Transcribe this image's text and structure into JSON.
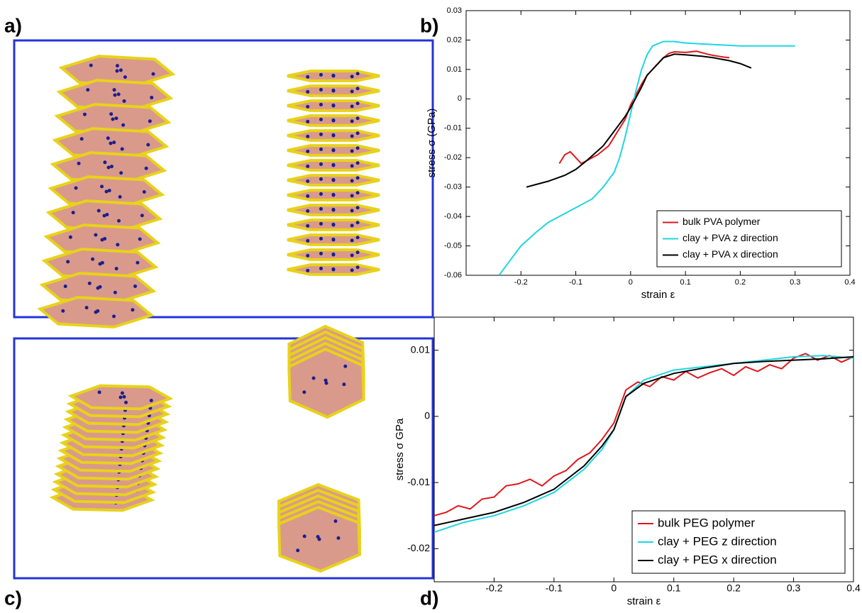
{
  "panel_labels": [
    "a)",
    "b)",
    "c)",
    "d)"
  ],
  "chart_data": [
    {
      "type": "line",
      "xlabel": "strain ε",
      "ylabel": "stress σ  (GPa)",
      "xlim": [
        -0.3,
        0.4
      ],
      "xticks": [
        -0.2,
        -0.1,
        0,
        0.1,
        0.2,
        0.3,
        0.4
      ],
      "ylim": [
        -0.06,
        0.03
      ],
      "yticks": [
        -0.06,
        -0.05,
        -0.04,
        -0.03,
        -0.02,
        -0.01,
        0,
        0.01,
        0.02,
        0.03
      ],
      "legend": "lower right",
      "series": [
        {
          "name": "bulk PVA polymer",
          "color": "#e0161c",
          "x": [
            -0.13,
            -0.12,
            -0.11,
            -0.1,
            -0.09,
            -0.07,
            -0.06,
            -0.04,
            -0.03,
            -0.01,
            0,
            0.02,
            0.03,
            0.05,
            0.06,
            0.07,
            0.08,
            0.1,
            0.12,
            0.14,
            0.15,
            0.17,
            0.18
          ],
          "values": [
            -0.022,
            -0.019,
            -0.018,
            -0.02,
            -0.022,
            -0.02,
            -0.019,
            -0.016,
            -0.013,
            -0.007,
            -0.002,
            0.005,
            0.008,
            0.012,
            0.014,
            0.0155,
            0.016,
            0.0158,
            0.0162,
            0.0152,
            0.0148,
            0.0142,
            0.014
          ]
        },
        {
          "name": "clay + PVA z direction",
          "color": "#1fd6e0",
          "x": [
            -0.24,
            -0.22,
            -0.2,
            -0.17,
            -0.15,
            -0.12,
            -0.1,
            -0.07,
            -0.05,
            -0.03,
            -0.02,
            -0.01,
            0,
            0.01,
            0.02,
            0.03,
            0.04,
            0.06,
            0.08,
            0.1,
            0.15,
            0.2,
            0.25,
            0.3
          ],
          "values": [
            -0.06,
            -0.055,
            -0.05,
            -0.045,
            -0.042,
            -0.039,
            -0.037,
            -0.034,
            -0.03,
            -0.025,
            -0.02,
            -0.013,
            -0.005,
            0.003,
            0.01,
            0.015,
            0.018,
            0.0195,
            0.0195,
            0.019,
            0.0185,
            0.018,
            0.018,
            0.018
          ]
        },
        {
          "name": "clay + PVA x direction",
          "color": "#000000",
          "x": [
            -0.19,
            -0.17,
            -0.15,
            -0.12,
            -0.1,
            -0.08,
            -0.05,
            -0.03,
            -0.01,
            0,
            0.02,
            0.03,
            0.05,
            0.06,
            0.08,
            0.1,
            0.13,
            0.15,
            0.18,
            0.2,
            0.22
          ],
          "values": [
            -0.03,
            -0.029,
            -0.028,
            -0.026,
            -0.024,
            -0.021,
            -0.016,
            -0.011,
            -0.006,
            -0.003,
            0.004,
            0.008,
            0.012,
            0.014,
            0.0152,
            0.015,
            0.0145,
            0.014,
            0.013,
            0.012,
            0.0105
          ]
        }
      ]
    },
    {
      "type": "line",
      "xlabel": "strain  ε",
      "ylabel": "stress  σ  GPa",
      "xlim": [
        -0.3,
        0.4
      ],
      "xticks": [
        -0.2,
        -0.1,
        0,
        0.1,
        0.2,
        0.3,
        0.4
      ],
      "ylim": [
        -0.025,
        0.015
      ],
      "yticks": [
        -0.02,
        -0.01,
        0,
        0.01
      ],
      "legend": "lower right",
      "series": [
        {
          "name": "bulk PEG polymer",
          "color": "#e0161c",
          "x": [
            -0.3,
            -0.28,
            -0.26,
            -0.24,
            -0.22,
            -0.2,
            -0.18,
            -0.16,
            -0.14,
            -0.12,
            -0.1,
            -0.08,
            -0.06,
            -0.04,
            -0.02,
            0,
            0.02,
            0.04,
            0.06,
            0.08,
            0.1,
            0.12,
            0.14,
            0.16,
            0.18,
            0.2,
            0.22,
            0.24,
            0.26,
            0.28,
            0.3,
            0.32,
            0.34,
            0.36,
            0.38,
            0.4
          ],
          "values": [
            -0.015,
            -0.0145,
            -0.0135,
            -0.014,
            -0.0125,
            -0.0122,
            -0.0105,
            -0.0102,
            -0.0095,
            -0.0105,
            -0.009,
            -0.0082,
            -0.0065,
            -0.0055,
            -0.0035,
            -0.001,
            0.004,
            0.0052,
            0.0045,
            0.006,
            0.0055,
            0.0068,
            0.0058,
            0.0066,
            0.0072,
            0.0062,
            0.0075,
            0.0068,
            0.0078,
            0.0072,
            0.0088,
            0.0095,
            0.0085,
            0.0092,
            0.0082,
            0.009
          ]
        },
        {
          "name": "clay + PEG z direction",
          "color": "#1fd6e0",
          "x": [
            -0.3,
            -0.25,
            -0.2,
            -0.15,
            -0.1,
            -0.05,
            -0.02,
            0,
            0.02,
            0.05,
            0.1,
            0.15,
            0.2,
            0.25,
            0.3,
            0.35,
            0.4
          ],
          "values": [
            -0.0175,
            -0.016,
            -0.015,
            -0.0135,
            -0.0115,
            -0.008,
            -0.005,
            -0.002,
            0.003,
            0.0055,
            0.007,
            0.0075,
            0.008,
            0.0085,
            0.009,
            0.0092,
            0.0088
          ]
        },
        {
          "name": "clay + PEG x direction",
          "color": "#000000",
          "x": [
            -0.3,
            -0.25,
            -0.2,
            -0.15,
            -0.1,
            -0.05,
            -0.02,
            0,
            0.02,
            0.05,
            0.1,
            0.15,
            0.2,
            0.25,
            0.3,
            0.35,
            0.4
          ],
          "values": [
            -0.0165,
            -0.0155,
            -0.0145,
            -0.013,
            -0.011,
            -0.0075,
            -0.0045,
            -0.002,
            0.003,
            0.005,
            0.0065,
            0.0073,
            0.008,
            0.0083,
            0.0085,
            0.0087,
            0.009
          ]
        }
      ]
    }
  ]
}
